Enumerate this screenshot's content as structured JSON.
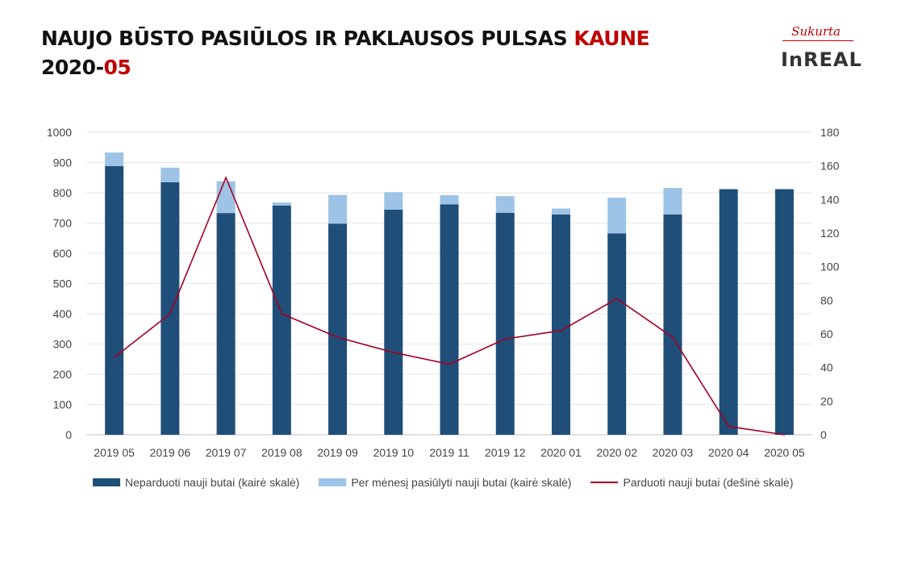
{
  "title": {
    "line1_prefix": "NAUJO BŪSTO PASIŪLOS IR PAKLAUSOS PULSAS ",
    "line1_accent": "KAUNE",
    "line2_prefix": "2020-",
    "line2_accent": "05",
    "accent_color": "#c00000"
  },
  "logo": {
    "script_text": "Sukurta",
    "word": "InREAL"
  },
  "chart_data": {
    "type": "bar",
    "stacked": true,
    "categories": [
      "2019 05",
      "2019 06",
      "2019 07",
      "2019 08",
      "2019 09",
      "2019 10",
      "2019 11",
      "2019 12",
      "2020 01",
      "2020 02",
      "2020 03",
      "2020 04",
      "2020 05"
    ],
    "series": [
      {
        "name": "Neparduoti nauji butai (kairė skalė)",
        "axis": "left",
        "kind": "bar",
        "color": "#1f4e79",
        "values": [
          888,
          835,
          733,
          758,
          698,
          744,
          762,
          734,
          728,
          666,
          728,
          812,
          812
        ]
      },
      {
        "name": "Per mėnesį pasiūlyti nauji butai (kairė skalė)",
        "axis": "left",
        "kind": "bar",
        "color": "#9dc3e6",
        "values": [
          45,
          48,
          105,
          10,
          95,
          58,
          30,
          55,
          20,
          118,
          88,
          0,
          0
        ]
      },
      {
        "name": "Parduoti nauji butai (dešinė skalė)",
        "axis": "right",
        "kind": "line",
        "color": "#a50021",
        "values": [
          46,
          72,
          153,
          72,
          58,
          49,
          42,
          57,
          62,
          81,
          58,
          5,
          0
        ]
      }
    ],
    "left_axis": {
      "min": 0,
      "max": 1000,
      "step": 100
    },
    "right_axis": {
      "min": 0,
      "max": 180,
      "step": 20
    },
    "grid": true,
    "legend_position": "bottom"
  }
}
